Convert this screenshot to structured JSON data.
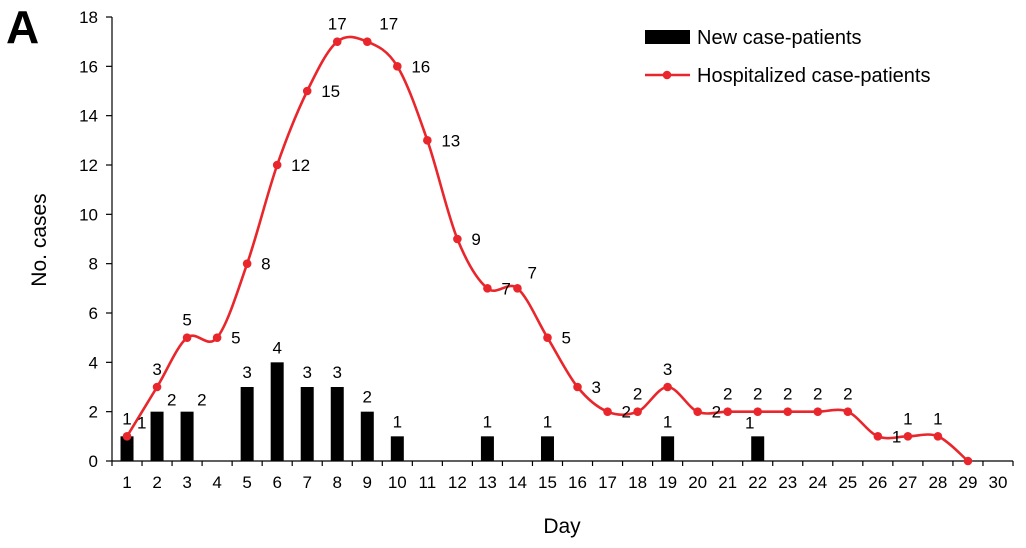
{
  "panel_label": "A",
  "chart_data": {
    "type": "bar+line",
    "xlabel": "Day",
    "ylabel": "No. cases",
    "ylim": [
      0,
      18
    ],
    "yticks": [
      0,
      2,
      4,
      6,
      8,
      10,
      12,
      14,
      16,
      18
    ],
    "x": [
      1,
      2,
      3,
      4,
      5,
      6,
      7,
      8,
      9,
      10,
      11,
      12,
      13,
      14,
      15,
      16,
      17,
      18,
      19,
      20,
      21,
      22,
      23,
      24,
      25,
      26,
      27,
      28,
      29,
      30
    ],
    "legend": {
      "position": "top-right"
    },
    "series": [
      {
        "name": "New case-patients",
        "type": "bar",
        "color": "#000000",
        "values": [
          1,
          2,
          2,
          0,
          3,
          4,
          3,
          3,
          2,
          1,
          0,
          0,
          1,
          0,
          1,
          0,
          0,
          0,
          1,
          0,
          0,
          1,
          0,
          0,
          0,
          0,
          0,
          0,
          0,
          0
        ],
        "labels": [
          "1",
          "2",
          "2",
          "",
          "3",
          "4",
          "3",
          "3",
          "2",
          "1",
          "",
          "",
          "1",
          "",
          "1",
          "",
          "",
          "",
          "1",
          "",
          "",
          "1",
          "",
          "",
          "",
          "",
          "",
          "",
          "",
          ""
        ]
      },
      {
        "name": "Hospitalized case-patients",
        "type": "line",
        "color": "#e8262b",
        "values": [
          1,
          3,
          5,
          5,
          8,
          12,
          15,
          17,
          17,
          16,
          13,
          9,
          7,
          7,
          5,
          3,
          2,
          2,
          3,
          2,
          2,
          2,
          2,
          2,
          2,
          1,
          1,
          1,
          0,
          null
        ],
        "labels": [
          "1",
          "3",
          "5",
          "5",
          "8",
          "12",
          "15",
          "17",
          "17",
          "16",
          "13",
          "9",
          "7",
          "7",
          "5",
          "3",
          "2",
          "2",
          "3",
          "2",
          "2",
          "2",
          "2",
          "2",
          "2",
          "1",
          "1",
          "1",
          "",
          ""
        ]
      }
    ]
  }
}
